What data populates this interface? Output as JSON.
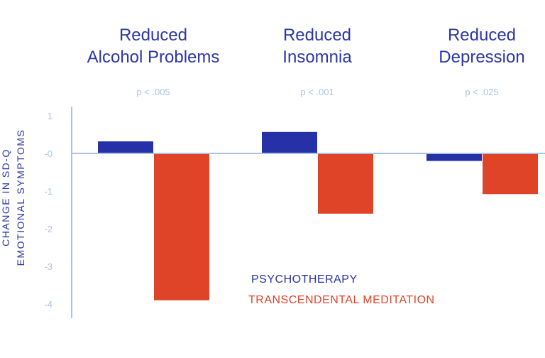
{
  "chart_data": {
    "type": "bar",
    "categories": [
      [
        "Reduced",
        "Alcohol Problems"
      ],
      [
        "Reduced",
        "Insomnia"
      ],
      [
        "Reduced",
        "Depression"
      ]
    ],
    "p_values": [
      "p < .005",
      "p < .001",
      "p < .025"
    ],
    "ylabel": [
      "CHANGE IN SD-Q",
      "EMOTIONAL SYMPTOMS"
    ],
    "yticks": [
      {
        "value": 1,
        "label": "1"
      },
      {
        "value": 0,
        "label": "-0"
      },
      {
        "value": -1,
        "label": "-1"
      },
      {
        "value": -2,
        "label": "-2"
      },
      {
        "value": -3,
        "label": "-3"
      },
      {
        "value": -4,
        "label": "-4"
      }
    ],
    "ylim": [
      -4.3,
      1.2
    ],
    "series": [
      {
        "name": "PSYCHOTHERAPY",
        "color": "#2631a8",
        "values": [
          0.32,
          0.57,
          -0.2
        ]
      },
      {
        "name": "TRANSCENDENTAL MEDITATION",
        "color": "#e04428",
        "values": [
          -3.9,
          -1.6,
          -1.08
        ]
      }
    ],
    "axis_color": "#a9c3e6",
    "grid": false,
    "legend_position": "bottom-center"
  }
}
